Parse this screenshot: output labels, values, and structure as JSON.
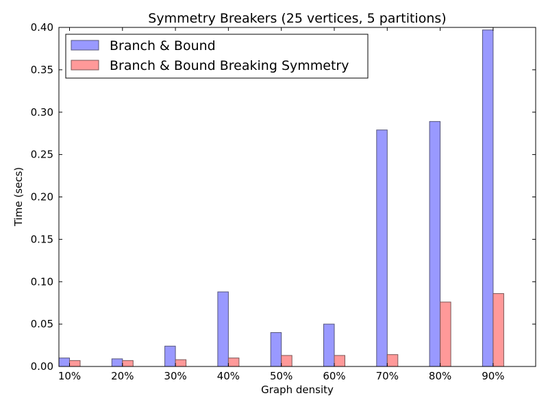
{
  "chart_data": {
    "type": "bar",
    "title": "Symmetry Breakers (25 vertices, 5 partitions)",
    "xlabel": "Graph density",
    "ylabel": "Time (secs)",
    "categories": [
      "10%",
      "20%",
      "30%",
      "40%",
      "50%",
      "60%",
      "70%",
      "80%",
      "90%"
    ],
    "series": [
      {
        "name": "Branch & Bound",
        "color": "#9999ff",
        "values": [
          0.01,
          0.009,
          0.024,
          0.088,
          0.04,
          0.05,
          0.279,
          0.289,
          0.397
        ]
      },
      {
        "name": "Branch & Bound Breaking Symmetry",
        "color": "#ff9999",
        "values": [
          0.007,
          0.007,
          0.008,
          0.01,
          0.013,
          0.013,
          0.014,
          0.076,
          0.086
        ]
      }
    ],
    "ylim": [
      0,
      0.4
    ],
    "yticks": [
      "0.00",
      "0.05",
      "0.10",
      "0.15",
      "0.20",
      "0.25",
      "0.30",
      "0.35",
      "0.40"
    ],
    "grid": false,
    "legend_position": "top-left"
  }
}
